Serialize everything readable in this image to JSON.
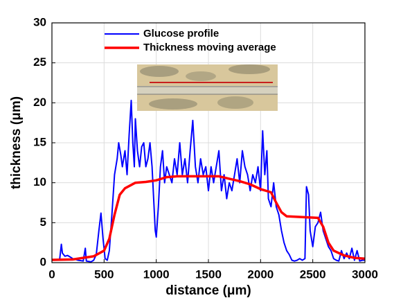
{
  "chart_data": {
    "type": "line",
    "x_label": "distance (μm)",
    "y_label": "thickness (μm)",
    "xlim": [
      0,
      3000
    ],
    "ylim": [
      0,
      30
    ],
    "xticks": [
      0,
      500,
      1000,
      1500,
      2000,
      2500,
      3000
    ],
    "yticks": [
      0,
      5,
      10,
      15,
      20,
      25,
      30
    ],
    "grid": true,
    "legend": "upper center",
    "series": [
      {
        "name": "Glucose profile",
        "color": "#0000ff",
        "x": [
          0,
          50,
          75,
          90,
          100,
          125,
          150,
          175,
          200,
          250,
          300,
          320,
          330,
          375,
          400,
          425,
          450,
          470,
          490,
          510,
          530,
          550,
          575,
          600,
          625,
          640,
          660,
          675,
          700,
          720,
          740,
          760,
          775,
          790,
          800,
          820,
          840,
          860,
          880,
          900,
          920,
          940,
          960,
          975,
          990,
          1000,
          1020,
          1040,
          1060,
          1080,
          1100,
          1125,
          1150,
          1175,
          1200,
          1225,
          1250,
          1275,
          1300,
          1325,
          1350,
          1375,
          1400,
          1425,
          1450,
          1475,
          1500,
          1525,
          1550,
          1575,
          1600,
          1625,
          1650,
          1675,
          1700,
          1725,
          1750,
          1775,
          1800,
          1825,
          1850,
          1875,
          1900,
          1925,
          1950,
          1975,
          2000,
          2020,
          2040,
          2060,
          2075,
          2100,
          2125,
          2150,
          2175,
          2200,
          2225,
          2250,
          2275,
          2300,
          2325,
          2350,
          2375,
          2400,
          2425,
          2440,
          2460,
          2475,
          2500,
          2525,
          2550,
          2575,
          2600,
          2625,
          2650,
          2675,
          2700,
          2725,
          2750,
          2775,
          2800,
          2825,
          2850,
          2875,
          2900,
          2925,
          2950,
          2975,
          3000
        ],
        "values": [
          0.3,
          0.3,
          0.5,
          2.3,
          1.2,
          0.8,
          0.9,
          0.7,
          0.5,
          0.3,
          0.2,
          1.8,
          0.2,
          0.1,
          0.3,
          1.0,
          4.0,
          6.2,
          3.0,
          0.5,
          0.3,
          1.5,
          6,
          11,
          13,
          15,
          13.5,
          12,
          14,
          11,
          16,
          20.3,
          15,
          12,
          18,
          14,
          12,
          14.5,
          15,
          12,
          13,
          15,
          12,
          8,
          4,
          3.2,
          7,
          12,
          14,
          10,
          12,
          11,
          10,
          13,
          11,
          15,
          11,
          13,
          10,
          14,
          17.8,
          12,
          10,
          13,
          11,
          12,
          9,
          12,
          10,
          12,
          14,
          9,
          11,
          8,
          10,
          9,
          11,
          13,
          10,
          14,
          12,
          11,
          9,
          11,
          10,
          12,
          9,
          16.5,
          11,
          14,
          8,
          7,
          10,
          7,
          6,
          4,
          2.5,
          1.5,
          1,
          0.3,
          0.2,
          0.3,
          0.5,
          0.3,
          0.5,
          9.5,
          8.5,
          4,
          2,
          4.5,
          5,
          6.3,
          4,
          3,
          2,
          1.5,
          0.5,
          0.3,
          0.2,
          1.5,
          0.5,
          1.2,
          0.5,
          1.8,
          0.3,
          1.5,
          0.2,
          0.3,
          0.3
        ]
      },
      {
        "name": "Thickness moving average",
        "color": "#ff0000",
        "x": [
          0,
          200,
          400,
          500,
          550,
          600,
          650,
          700,
          800,
          900,
          1000,
          1100,
          1200,
          1400,
          1600,
          1700,
          1800,
          1900,
          2000,
          2100,
          2150,
          2200,
          2250,
          2400,
          2550,
          2600,
          2650,
          2700,
          2800,
          2900,
          3000
        ],
        "values": [
          0.35,
          0.4,
          0.8,
          1.5,
          3,
          6,
          8.5,
          9.3,
          10,
          10.1,
          10.3,
          10.7,
          10.8,
          10.8,
          10.8,
          10.5,
          10.2,
          9.8,
          9.2,
          8.8,
          7.5,
          6.3,
          5.8,
          5.7,
          5.6,
          4.5,
          2.5,
          1.5,
          0.9,
          0.6,
          0.5
        ]
      }
    ]
  }
}
